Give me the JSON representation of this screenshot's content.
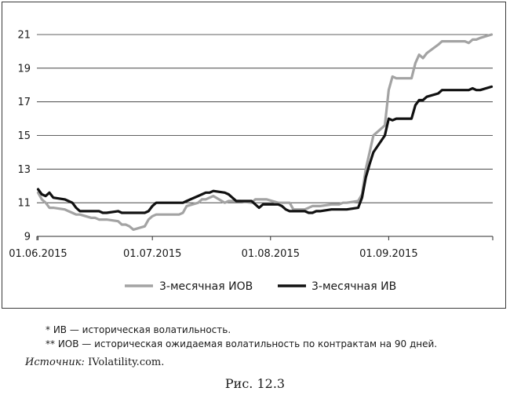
{
  "chart_data": {
    "type": "line",
    "title": "",
    "xlabel": "",
    "ylabel": "",
    "ylim": [
      9,
      21
    ],
    "xlim": [
      "2015-06-01",
      "2015-09-28"
    ],
    "y_ticks": [
      9,
      11,
      13,
      15,
      17,
      19,
      21
    ],
    "x_ticks": [
      "01.06.2015",
      "01.07.2015",
      "01.08.2015",
      "01.09.2015"
    ],
    "grid": "horizontal",
    "legend_position": "bottom",
    "series": [
      {
        "name": "3-месячная ИОВ",
        "color": "#a3a3a3",
        "x": [
          "2015-06-01",
          "2015-06-02",
          "2015-06-03",
          "2015-06-04",
          "2015-06-05",
          "2015-06-08",
          "2015-06-09",
          "2015-06-10",
          "2015-06-11",
          "2015-06-12",
          "2015-06-15",
          "2015-06-16",
          "2015-06-17",
          "2015-06-18",
          "2015-06-19",
          "2015-06-22",
          "2015-06-23",
          "2015-06-24",
          "2015-06-25",
          "2015-06-26",
          "2015-06-29",
          "2015-06-30",
          "2015-07-01",
          "2015-07-02",
          "2015-07-03",
          "2015-07-06",
          "2015-07-07",
          "2015-07-08",
          "2015-07-09",
          "2015-07-10",
          "2015-07-13",
          "2015-07-14",
          "2015-07-15",
          "2015-07-16",
          "2015-07-17",
          "2015-07-20",
          "2015-07-21",
          "2015-07-22",
          "2015-07-23",
          "2015-07-24",
          "2015-07-27",
          "2015-07-28",
          "2015-07-29",
          "2015-07-30",
          "2015-07-31",
          "2015-08-03",
          "2015-08-04",
          "2015-08-05",
          "2015-08-06",
          "2015-08-07",
          "2015-08-10",
          "2015-08-11",
          "2015-08-12",
          "2015-08-13",
          "2015-08-14",
          "2015-08-17",
          "2015-08-18",
          "2015-08-19",
          "2015-08-20",
          "2015-08-21",
          "2015-08-24",
          "2015-08-25",
          "2015-08-26",
          "2015-08-27",
          "2015-08-28",
          "2015-08-31",
          "2015-09-01",
          "2015-09-02",
          "2015-09-03",
          "2015-09-04",
          "2015-09-07",
          "2015-09-08",
          "2015-09-09",
          "2015-09-10",
          "2015-09-11",
          "2015-09-14",
          "2015-09-15",
          "2015-09-16",
          "2015-09-17",
          "2015-09-18",
          "2015-09-21",
          "2015-09-22",
          "2015-09-23",
          "2015-09-24",
          "2015-09-25",
          "2015-09-28"
        ],
        "values": [
          11.6,
          11.2,
          11.0,
          10.7,
          10.7,
          10.6,
          10.5,
          10.4,
          10.3,
          10.3,
          10.1,
          10.1,
          10.0,
          10.0,
          10.0,
          9.9,
          9.7,
          9.7,
          9.6,
          9.4,
          9.6,
          10.0,
          10.2,
          10.3,
          10.3,
          10.3,
          10.3,
          10.3,
          10.4,
          10.8,
          11.0,
          11.2,
          11.2,
          11.3,
          11.4,
          11.0,
          11.1,
          11.1,
          11.1,
          11.1,
          11.0,
          11.2,
          11.2,
          11.2,
          11.2,
          11.0,
          11.0,
          11.0,
          11.0,
          10.6,
          10.6,
          10.7,
          10.8,
          10.8,
          10.8,
          10.9,
          10.9,
          10.9,
          11.0,
          11.0,
          11.1,
          11.5,
          13.0,
          14.0,
          15.0,
          15.6,
          17.7,
          18.5,
          18.4,
          18.4,
          18.4,
          19.3,
          19.8,
          19.6,
          19.9,
          20.4,
          20.6,
          20.6,
          20.6,
          20.6,
          20.6,
          20.5,
          20.7,
          20.7,
          20.8,
          21.0
        ]
      },
      {
        "name": "3-месячная ИВ",
        "color": "#111111",
        "x": [
          "2015-06-01",
          "2015-06-02",
          "2015-06-03",
          "2015-06-04",
          "2015-06-05",
          "2015-06-08",
          "2015-06-09",
          "2015-06-10",
          "2015-06-11",
          "2015-06-12",
          "2015-06-15",
          "2015-06-16",
          "2015-06-17",
          "2015-06-18",
          "2015-06-19",
          "2015-06-22",
          "2015-06-23",
          "2015-06-24",
          "2015-06-25",
          "2015-06-26",
          "2015-06-29",
          "2015-06-30",
          "2015-07-01",
          "2015-07-02",
          "2015-07-03",
          "2015-07-06",
          "2015-07-07",
          "2015-07-08",
          "2015-07-09",
          "2015-07-10",
          "2015-07-13",
          "2015-07-14",
          "2015-07-15",
          "2015-07-16",
          "2015-07-17",
          "2015-07-20",
          "2015-07-21",
          "2015-07-22",
          "2015-07-23",
          "2015-07-24",
          "2015-07-27",
          "2015-07-28",
          "2015-07-29",
          "2015-07-30",
          "2015-07-31",
          "2015-08-03",
          "2015-08-04",
          "2015-08-05",
          "2015-08-06",
          "2015-08-07",
          "2015-08-10",
          "2015-08-11",
          "2015-08-12",
          "2015-08-13",
          "2015-08-14",
          "2015-08-17",
          "2015-08-18",
          "2015-08-19",
          "2015-08-20",
          "2015-08-21",
          "2015-08-24",
          "2015-08-25",
          "2015-08-26",
          "2015-08-27",
          "2015-08-28",
          "2015-08-31",
          "2015-09-01",
          "2015-09-02",
          "2015-09-03",
          "2015-09-04",
          "2015-09-07",
          "2015-09-08",
          "2015-09-09",
          "2015-09-10",
          "2015-09-11",
          "2015-09-14",
          "2015-09-15",
          "2015-09-16",
          "2015-09-17",
          "2015-09-18",
          "2015-09-21",
          "2015-09-22",
          "2015-09-23",
          "2015-09-24",
          "2015-09-25",
          "2015-09-28"
        ],
        "values": [
          11.8,
          11.5,
          11.4,
          11.6,
          11.3,
          11.2,
          11.1,
          11.0,
          10.7,
          10.5,
          10.5,
          10.5,
          10.5,
          10.4,
          10.4,
          10.5,
          10.4,
          10.4,
          10.4,
          10.4,
          10.4,
          10.5,
          10.8,
          11.0,
          11.0,
          11.0,
          11.0,
          11.0,
          11.0,
          11.1,
          11.4,
          11.5,
          11.6,
          11.6,
          11.7,
          11.6,
          11.5,
          11.3,
          11.1,
          11.1,
          11.1,
          10.9,
          10.7,
          10.9,
          10.9,
          10.9,
          10.8,
          10.6,
          10.5,
          10.5,
          10.5,
          10.4,
          10.4,
          10.5,
          10.5,
          10.6,
          10.6,
          10.6,
          10.6,
          10.6,
          10.7,
          11.3,
          12.5,
          13.3,
          14.0,
          15.0,
          16.0,
          15.9,
          16.0,
          16.0,
          16.0,
          16.8,
          17.1,
          17.1,
          17.3,
          17.5,
          17.7,
          17.7,
          17.7,
          17.7,
          17.7,
          17.7,
          17.8,
          17.7,
          17.7,
          17.9
        ]
      }
    ]
  },
  "notes": {
    "note1": "* ИВ — историческая волатильность.",
    "note2": "** ИОВ — историческая ожидаемая волатильность по контрактам на 90 дней."
  },
  "source": {
    "label": "Источник:",
    "value": "IVolatility.com."
  },
  "caption": "Рис. 12.3"
}
